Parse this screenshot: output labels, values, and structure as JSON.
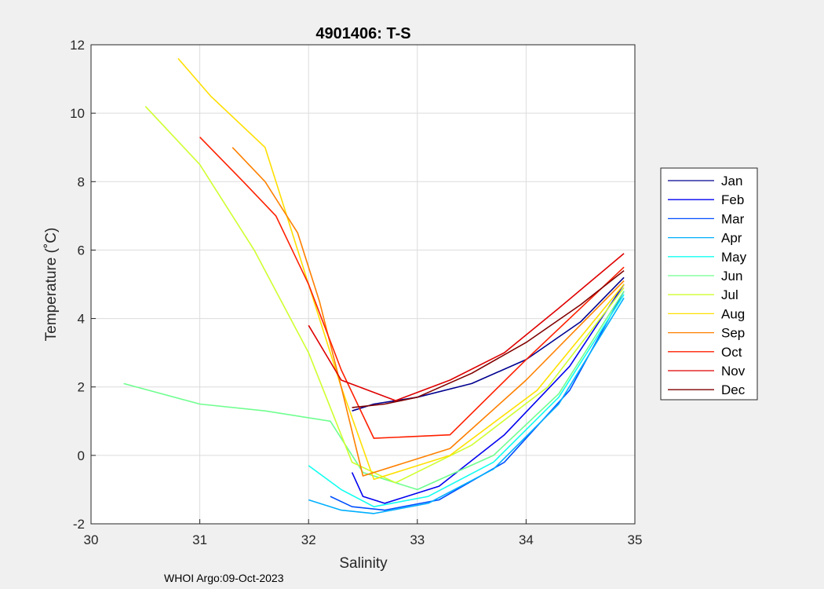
{
  "chart_data": {
    "type": "line",
    "title": "4901406:  T-S",
    "xlabel": "Salinity",
    "ylabel": "Temperature (˚C)",
    "xlim": [
      30,
      35
    ],
    "ylim": [
      -2,
      12
    ],
    "xticks": [
      30,
      31,
      32,
      33,
      34,
      35
    ],
    "yticks": [
      -2,
      0,
      2,
      4,
      6,
      8,
      10,
      12
    ],
    "grid": true,
    "legend_position": "right",
    "legend": [
      "Jan",
      "Feb",
      "Mar",
      "Apr",
      "May",
      "Jun",
      "Jul",
      "Aug",
      "Sep",
      "Oct",
      "Nov",
      "Dec"
    ],
    "colors": [
      "#00008f",
      "#0000ef",
      "#004fff",
      "#00afff",
      "#10ffef",
      "#6fff8f",
      "#cfff2f",
      "#ffdf00",
      "#ff8000",
      "#ff2000",
      "#df0000",
      "#800000"
    ],
    "series": [
      {
        "name": "Jan",
        "x": [
          32.4,
          32.6,
          33.0,
          33.5,
          34.0,
          34.5,
          34.9
        ],
        "y": [
          1.3,
          1.5,
          1.7,
          2.1,
          2.8,
          3.9,
          5.2
        ]
      },
      {
        "name": "Feb",
        "x": [
          32.4,
          32.5,
          32.7,
          33.2,
          33.8,
          34.4,
          34.9
        ],
        "y": [
          -0.5,
          -1.2,
          -1.4,
          -0.9,
          0.6,
          2.6,
          5.0
        ]
      },
      {
        "name": "Mar",
        "x": [
          32.2,
          32.4,
          32.7,
          33.2,
          33.8,
          34.4,
          34.9
        ],
        "y": [
          -1.2,
          -1.5,
          -1.6,
          -1.3,
          -0.2,
          1.9,
          4.8
        ]
      },
      {
        "name": "Apr",
        "x": [
          32.0,
          32.3,
          32.6,
          33.1,
          33.7,
          34.3,
          34.9
        ],
        "y": [
          -1.3,
          -1.6,
          -1.7,
          -1.4,
          -0.4,
          1.5,
          4.6
        ]
      },
      {
        "name": "May",
        "x": [
          32.0,
          32.3,
          32.6,
          33.1,
          33.7,
          34.3,
          34.9
        ],
        "y": [
          -0.3,
          -1.0,
          -1.5,
          -1.2,
          -0.2,
          1.7,
          4.7
        ]
      },
      {
        "name": "Jun",
        "x": [
          30.3,
          31.0,
          31.6,
          32.2,
          32.5,
          33.0,
          33.7,
          34.3,
          34.9
        ],
        "y": [
          2.1,
          1.5,
          1.3,
          1.0,
          -0.5,
          -1.0,
          0.0,
          1.8,
          4.8
        ]
      },
      {
        "name": "Jul",
        "x": [
          30.5,
          31.0,
          31.5,
          32.0,
          32.4,
          32.8,
          33.5,
          34.2,
          34.9
        ],
        "y": [
          10.2,
          8.5,
          6.0,
          3.0,
          -0.2,
          -0.8,
          0.3,
          2.0,
          4.9
        ]
      },
      {
        "name": "Aug",
        "x": [
          30.8,
          31.1,
          31.6,
          31.9,
          32.3,
          32.6,
          33.3,
          34.1,
          34.9
        ],
        "y": [
          11.6,
          10.5,
          9.0,
          6.0,
          2.0,
          -0.7,
          0.0,
          1.9,
          5.0
        ]
      },
      {
        "name": "Sep",
        "x": [
          31.3,
          31.6,
          31.9,
          32.1,
          32.3,
          32.5,
          33.3,
          34.0,
          34.9
        ],
        "y": [
          9.0,
          8.0,
          6.5,
          4.5,
          2.0,
          -0.6,
          0.2,
          2.2,
          5.1
        ]
      },
      {
        "name": "Oct",
        "x": [
          31.0,
          31.4,
          31.7,
          32.0,
          32.3,
          32.6,
          33.3,
          34.0,
          34.9
        ],
        "y": [
          9.3,
          8.0,
          7.0,
          5.0,
          2.5,
          0.5,
          0.6,
          2.8,
          5.5
        ]
      },
      {
        "name": "Nov",
        "x": [
          32.0,
          32.3,
          32.8,
          33.3,
          33.8,
          34.3,
          34.9
        ],
        "y": [
          3.8,
          2.2,
          1.6,
          2.2,
          3.0,
          4.3,
          5.9
        ]
      },
      {
        "name": "Dec",
        "x": [
          32.4,
          32.7,
          33.0,
          33.5,
          34.0,
          34.5,
          34.9
        ],
        "y": [
          1.4,
          1.5,
          1.7,
          2.4,
          3.3,
          4.4,
          5.4
        ]
      }
    ]
  },
  "footer": "WHOI Argo:09-Oct-2023"
}
